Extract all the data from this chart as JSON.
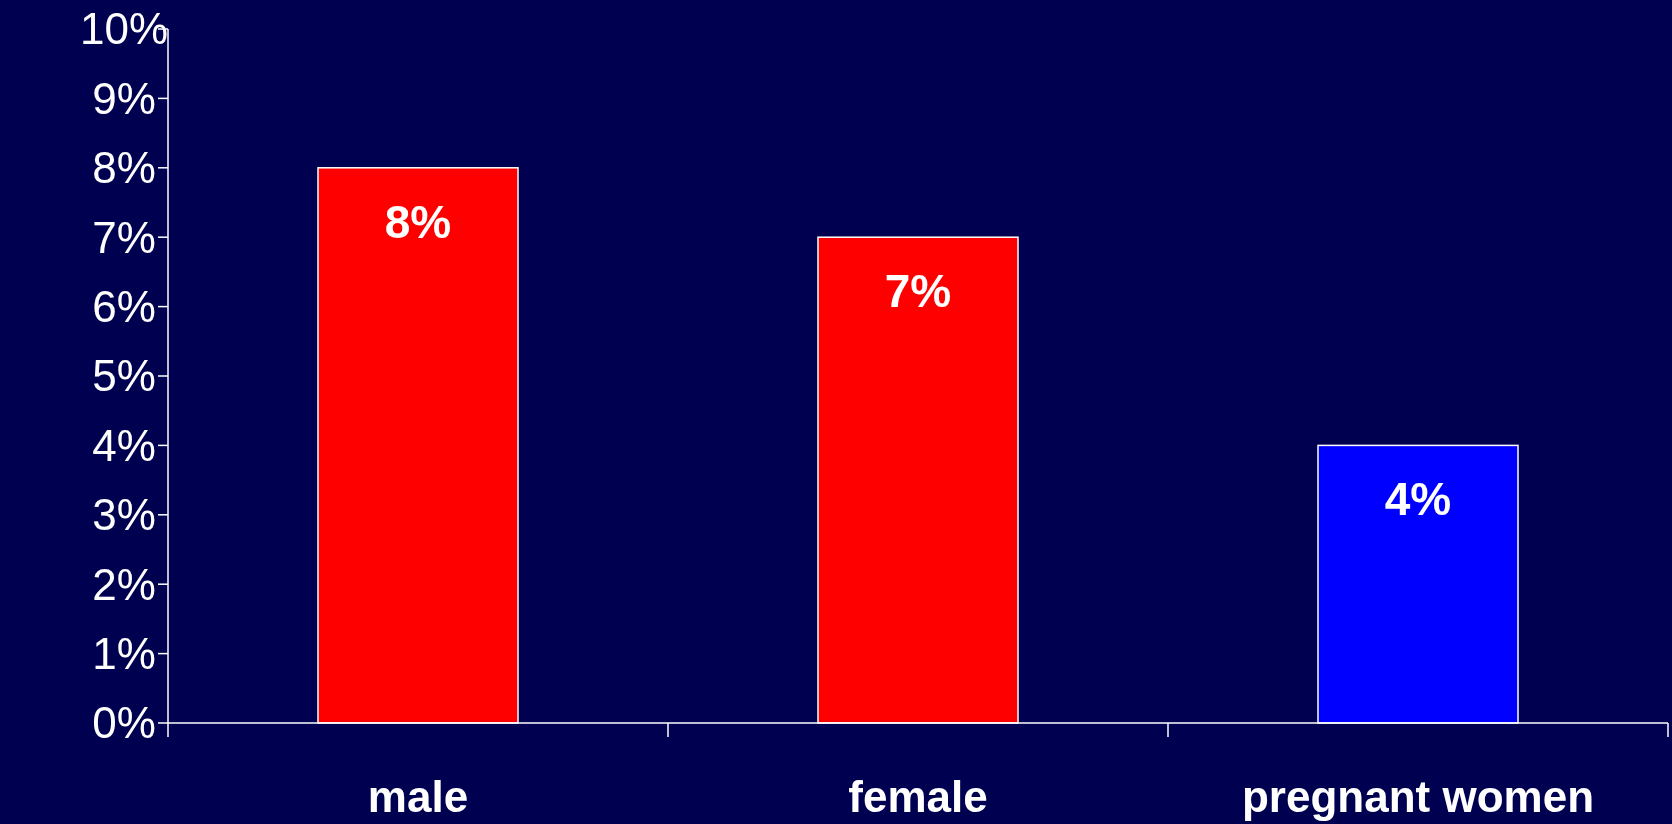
{
  "chart_data": {
    "type": "bar",
    "categories": [
      "male",
      "female",
      "pregnant women"
    ],
    "values": [
      8,
      7,
      4
    ],
    "colors": [
      "#ff0000",
      "#ff0000",
      "#0000ff"
    ],
    "value_labels": [
      "8%",
      "7%",
      "4%"
    ],
    "ylim": [
      0,
      10
    ],
    "yticks": [
      {
        "value": 0,
        "label": "0%"
      },
      {
        "value": 1,
        "label": "1%"
      },
      {
        "value": 2,
        "label": "2%"
      },
      {
        "value": 3,
        "label": "3%"
      },
      {
        "value": 4,
        "label": "4%"
      },
      {
        "value": 5,
        "label": "5%"
      },
      {
        "value": 6,
        "label": "6%"
      },
      {
        "value": 7,
        "label": "7%"
      },
      {
        "value": 8,
        "label": "8%"
      },
      {
        "value": 9,
        "label": "9%"
      },
      {
        "value": 10,
        "label": "10%"
      }
    ]
  }
}
